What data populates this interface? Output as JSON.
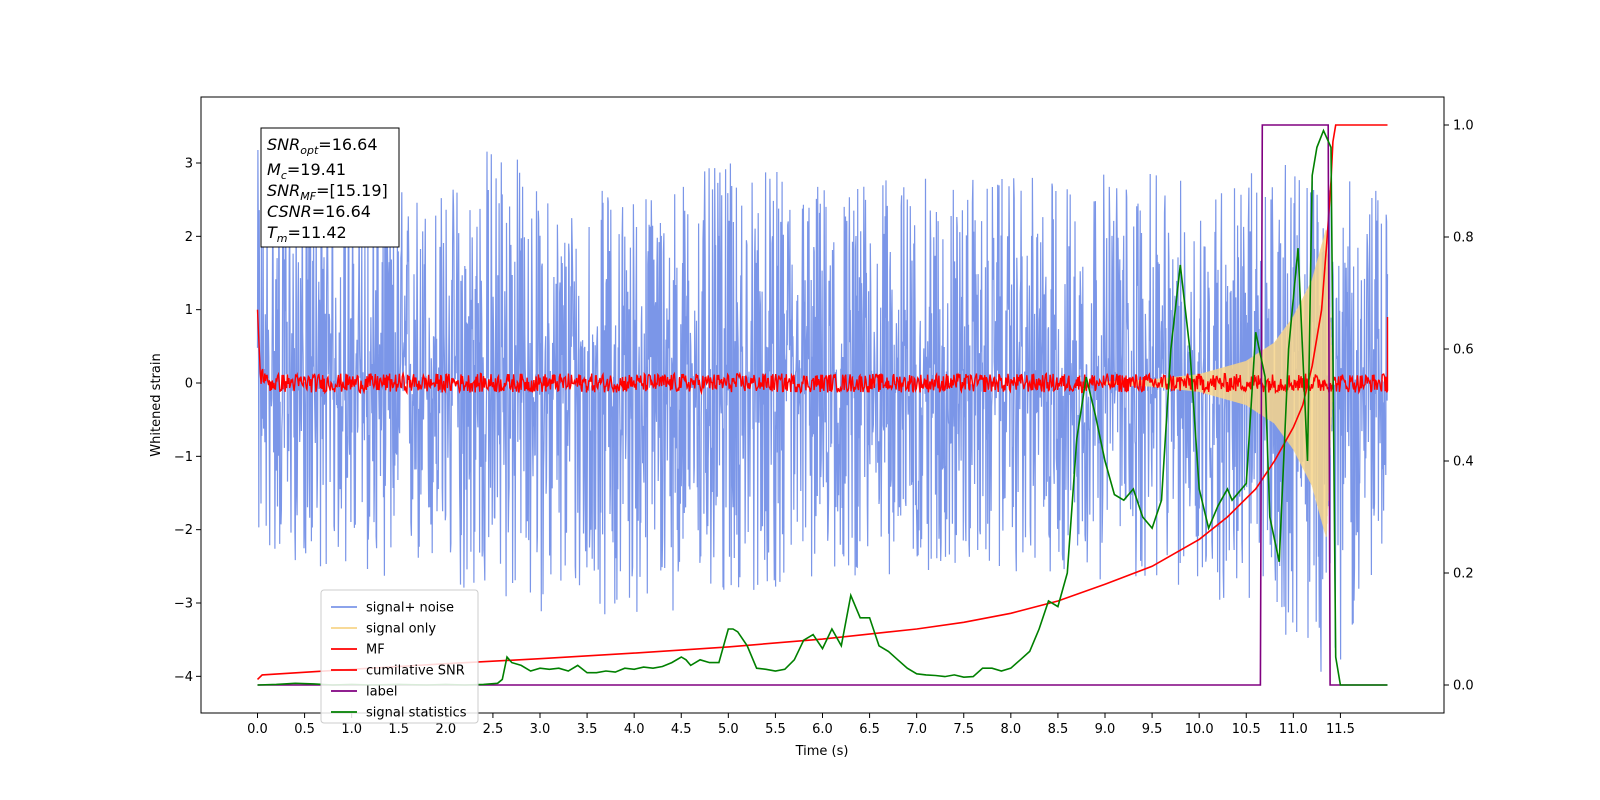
{
  "chart_data": {
    "type": "line",
    "xlabel": "Time (s)",
    "ylabel": "Whitened strain",
    "xlim": [
      -0.6,
      12.6
    ],
    "ylim": [
      -4.5,
      3.9
    ],
    "ylim_right": [
      -0.05,
      1.05
    ],
    "x_ticks": [
      "0.0",
      "0.5",
      "1.0",
      "1.5",
      "2.0",
      "2.5",
      "3.0",
      "3.5",
      "4.0",
      "4.5",
      "5.0",
      "5.5",
      "6.0",
      "6.5",
      "7.0",
      "7.5",
      "8.0",
      "8.5",
      "9.0",
      "9.5",
      "10.0",
      "10.5",
      "11.0",
      "11.5"
    ],
    "y_ticks_left": [
      "3",
      "2",
      "1",
      "0",
      "−1",
      "−2",
      "−3",
      "−4"
    ],
    "y_ticks_right": [
      "1.0",
      "0.8",
      "0.6",
      "0.4",
      "0.2",
      "0.0"
    ],
    "info_box": {
      "snr_opt": {
        "label": "SNR",
        "sub": "opt",
        "value": "=16.64"
      },
      "mc": {
        "label": "M",
        "sub": "c",
        "value": "=19.41"
      },
      "snr_mf": {
        "label": "SNR",
        "sub": "MF",
        "value": "=[15.19]"
      },
      "csnr": {
        "label": "CSNR",
        "sub": "",
        "value": "=16.64"
      },
      "tm": {
        "label": "T",
        "sub": "m",
        "value": "=11.42"
      }
    },
    "legend": {
      "placement": "lower-left",
      "entries": [
        {
          "label": "signal+ noise",
          "color": "#7b96e8"
        },
        {
          "label": "signal only",
          "color": "#f7d58a"
        },
        {
          "label": "MF",
          "color": "#ff0000"
        },
        {
          "label": "cumilative SNR",
          "color": "#ff0000"
        },
        {
          "label": "label",
          "color": "#800080"
        },
        {
          "label": "signal statistics",
          "color": "#008000"
        }
      ]
    },
    "series": [
      {
        "name": "signal+ noise",
        "axis": "left",
        "color": "#7b96e8",
        "x_range": [
          0.0,
          12.0
        ],
        "envelope_upper": [
          [
            0,
            3.2
          ],
          [
            1,
            2.8
          ],
          [
            2,
            2.7
          ],
          [
            2.6,
            3.6
          ],
          [
            3,
            2.6
          ],
          [
            4,
            2.7
          ],
          [
            5,
            3.0
          ],
          [
            6,
            2.8
          ],
          [
            7,
            2.8
          ],
          [
            8,
            2.8
          ],
          [
            9,
            2.9
          ],
          [
            10,
            2.8
          ],
          [
            11,
            3.0
          ],
          [
            12,
            2.6
          ]
        ],
        "envelope_lower": [
          [
            0,
            -2.4
          ],
          [
            1,
            -2.6
          ],
          [
            2,
            -2.8
          ],
          [
            2.5,
            -3.1
          ],
          [
            4,
            -3.2
          ],
          [
            5,
            -3.0
          ],
          [
            6,
            -2.7
          ],
          [
            7,
            -2.6
          ],
          [
            8,
            -2.6
          ],
          [
            9,
            -2.7
          ],
          [
            10,
            -2.9
          ],
          [
            11,
            -3.5
          ],
          [
            11.4,
            -4.1
          ],
          [
            12,
            -2.2
          ]
        ]
      },
      {
        "name": "signal only",
        "axis": "left",
        "color": "#f7d58a",
        "points": [
          [
            9.0,
            0.02
          ],
          [
            9.5,
            0.05
          ],
          [
            10.0,
            0.12
          ],
          [
            10.5,
            0.3
          ],
          [
            10.8,
            0.55
          ],
          [
            11.0,
            0.9
          ],
          [
            11.2,
            1.4
          ],
          [
            11.35,
            2.1
          ],
          [
            11.42,
            0
          ]
        ]
      },
      {
        "name": "MF",
        "axis": "left",
        "color": "#ff0000",
        "points": [
          [
            0.0,
            1.0
          ],
          [
            0.03,
            0.1
          ],
          [
            12.0,
            0.05
          ],
          [
            12.0,
            0.9
          ]
        ]
      },
      {
        "name": "cumilative SNR",
        "axis": "right",
        "color": "#ff0000",
        "points": [
          [
            0.0,
            0.01
          ],
          [
            0.05,
            0.018
          ],
          [
            1,
            0.028
          ],
          [
            2,
            0.038
          ],
          [
            3,
            0.047
          ],
          [
            4,
            0.057
          ],
          [
            5,
            0.068
          ],
          [
            6,
            0.082
          ],
          [
            7,
            0.1
          ],
          [
            7.5,
            0.112
          ],
          [
            8,
            0.128
          ],
          [
            8.5,
            0.15
          ],
          [
            9,
            0.18
          ],
          [
            9.5,
            0.212
          ],
          [
            10,
            0.26
          ],
          [
            10.3,
            0.3
          ],
          [
            10.6,
            0.35
          ],
          [
            10.8,
            0.4
          ],
          [
            11.0,
            0.46
          ],
          [
            11.1,
            0.5
          ],
          [
            11.2,
            0.57
          ],
          [
            11.3,
            0.67
          ],
          [
            11.36,
            0.8
          ],
          [
            11.4,
            0.9
          ],
          [
            11.42,
            0.97
          ],
          [
            11.45,
            1.0
          ],
          [
            12.0,
            1.0
          ]
        ]
      },
      {
        "name": "label",
        "axis": "right",
        "color": "#800080",
        "points": [
          [
            0.0,
            0.0
          ],
          [
            10.65,
            0.0
          ],
          [
            10.67,
            1.0
          ],
          [
            11.37,
            1.0
          ],
          [
            11.39,
            0.0
          ],
          [
            12.0,
            0.0
          ]
        ]
      },
      {
        "name": "signal statistics",
        "axis": "right",
        "color": "#008000",
        "points": [
          [
            0.0,
            0.0
          ],
          [
            0.2,
            0.001
          ],
          [
            0.4,
            0.003
          ],
          [
            0.6,
            0.002
          ],
          [
            0.8,
            0.0
          ],
          [
            1.0,
            0.001
          ],
          [
            1.2,
            0.0
          ],
          [
            1.5,
            0.001
          ],
          [
            1.8,
            0.0
          ],
          [
            2.0,
            0.001
          ],
          [
            2.2,
            0.0
          ],
          [
            2.4,
            0.001
          ],
          [
            2.55,
            0.003
          ],
          [
            2.6,
            0.01
          ],
          [
            2.65,
            0.05
          ],
          [
            2.7,
            0.04
          ],
          [
            2.8,
            0.035
          ],
          [
            2.9,
            0.025
          ],
          [
            3.0,
            0.03
          ],
          [
            3.1,
            0.028
          ],
          [
            3.2,
            0.03
          ],
          [
            3.3,
            0.025
          ],
          [
            3.4,
            0.035
          ],
          [
            3.5,
            0.022
          ],
          [
            3.6,
            0.022
          ],
          [
            3.7,
            0.025
          ],
          [
            3.8,
            0.023
          ],
          [
            3.9,
            0.03
          ],
          [
            4.0,
            0.028
          ],
          [
            4.1,
            0.032
          ],
          [
            4.2,
            0.03
          ],
          [
            4.3,
            0.033
          ],
          [
            4.4,
            0.04
          ],
          [
            4.5,
            0.05
          ],
          [
            4.55,
            0.045
          ],
          [
            4.6,
            0.035
          ],
          [
            4.7,
            0.045
          ],
          [
            4.8,
            0.04
          ],
          [
            4.9,
            0.04
          ],
          [
            5.0,
            0.1
          ],
          [
            5.05,
            0.1
          ],
          [
            5.1,
            0.095
          ],
          [
            5.2,
            0.07
          ],
          [
            5.3,
            0.03
          ],
          [
            5.4,
            0.028
          ],
          [
            5.5,
            0.025
          ],
          [
            5.6,
            0.028
          ],
          [
            5.7,
            0.045
          ],
          [
            5.8,
            0.08
          ],
          [
            5.9,
            0.09
          ],
          [
            6.0,
            0.065
          ],
          [
            6.1,
            0.1
          ],
          [
            6.2,
            0.07
          ],
          [
            6.3,
            0.16
          ],
          [
            6.4,
            0.12
          ],
          [
            6.5,
            0.12
          ],
          [
            6.6,
            0.07
          ],
          [
            6.7,
            0.06
          ],
          [
            6.8,
            0.045
          ],
          [
            6.9,
            0.03
          ],
          [
            7.0,
            0.02
          ],
          [
            7.1,
            0.018
          ],
          [
            7.2,
            0.017
          ],
          [
            7.3,
            0.015
          ],
          [
            7.4,
            0.018
          ],
          [
            7.5,
            0.014
          ],
          [
            7.6,
            0.015
          ],
          [
            7.7,
            0.03
          ],
          [
            7.8,
            0.03
          ],
          [
            7.9,
            0.025
          ],
          [
            8.0,
            0.03
          ],
          [
            8.1,
            0.045
          ],
          [
            8.2,
            0.06
          ],
          [
            8.3,
            0.1
          ],
          [
            8.4,
            0.15
          ],
          [
            8.5,
            0.14
          ],
          [
            8.6,
            0.2
          ],
          [
            8.7,
            0.44
          ],
          [
            8.8,
            0.55
          ],
          [
            8.9,
            0.48
          ],
          [
            9.0,
            0.4
          ],
          [
            9.1,
            0.34
          ],
          [
            9.2,
            0.33
          ],
          [
            9.3,
            0.35
          ],
          [
            9.4,
            0.3
          ],
          [
            9.5,
            0.28
          ],
          [
            9.6,
            0.33
          ],
          [
            9.7,
            0.6
          ],
          [
            9.8,
            0.75
          ],
          [
            9.9,
            0.6
          ],
          [
            10.0,
            0.35
          ],
          [
            10.1,
            0.28
          ],
          [
            10.2,
            0.32
          ],
          [
            10.3,
            0.35
          ],
          [
            10.35,
            0.33
          ],
          [
            10.5,
            0.36
          ],
          [
            10.6,
            0.63
          ],
          [
            10.7,
            0.55
          ],
          [
            10.75,
            0.3
          ],
          [
            10.85,
            0.22
          ],
          [
            10.95,
            0.6
          ],
          [
            11.05,
            0.78
          ],
          [
            11.15,
            0.4
          ],
          [
            11.2,
            0.91
          ],
          [
            11.25,
            0.96
          ],
          [
            11.32,
            0.99
          ],
          [
            11.4,
            0.96
          ],
          [
            11.45,
            0.05
          ],
          [
            11.5,
            0.0
          ],
          [
            12.0,
            0.0
          ]
        ]
      }
    ]
  }
}
